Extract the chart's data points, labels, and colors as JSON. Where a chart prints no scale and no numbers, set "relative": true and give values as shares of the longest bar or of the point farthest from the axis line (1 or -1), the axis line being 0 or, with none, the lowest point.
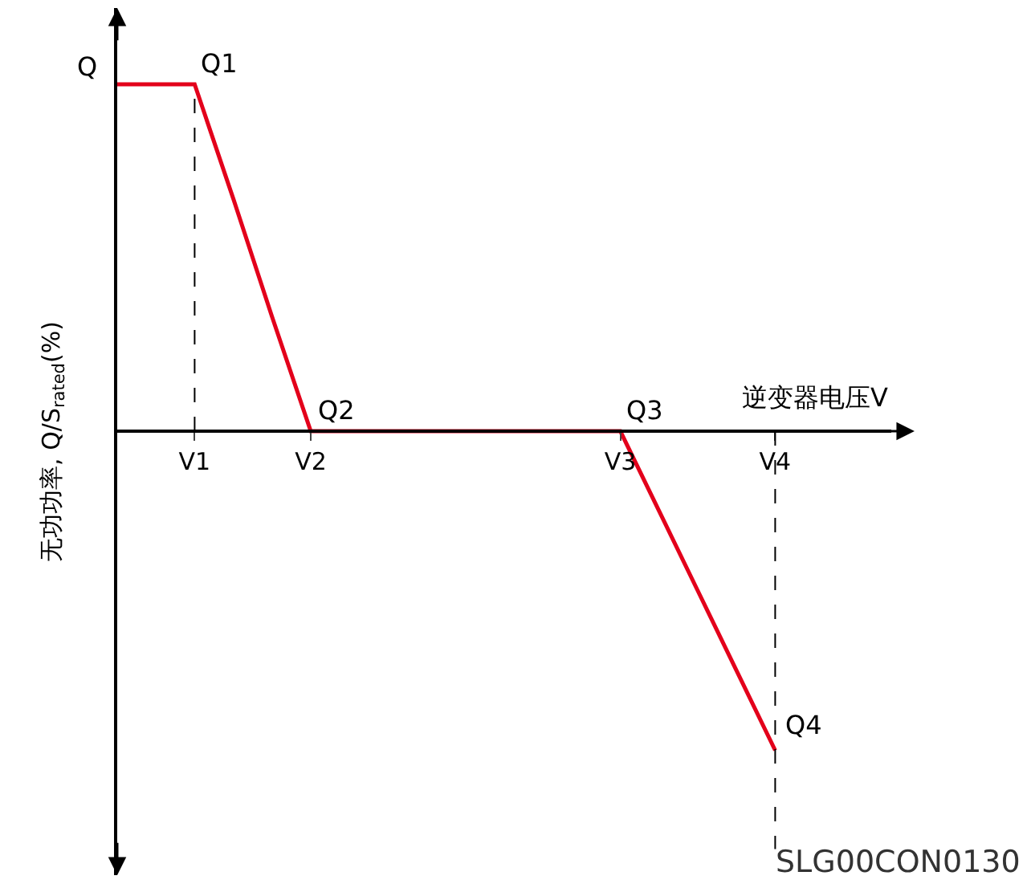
{
  "chart_data": {
    "type": "line",
    "relative": true,
    "xlabel": "逆变器电压V",
    "ylabel": "无功功率, Q/S$_{rated}$(%)",
    "categories": [
      null,
      null,
      "V1",
      null,
      null,
      "V2",
      null,
      null,
      null,
      null,
      null,
      null,
      null,
      "V3",
      null,
      null,
      null,
      "V4",
      null,
      null,
      null
    ],
    "series": [
      {
        "color": "#e3001b",
        "values": [
          1,
          1,
          1,
          0.67,
          0.33,
          0,
          0,
          0,
          0,
          0,
          0,
          0,
          0,
          0,
          -0.23,
          -0.46,
          -0.69,
          -0.92,
          null,
          null,
          null
        ]
      }
    ],
    "ref_lines": [
      {
        "axis": "x",
        "value": "V1",
        "line_style": "dashed",
        "color": "#000000"
      },
      {
        "axis": "x",
        "value": "V4",
        "line_style": "dashed",
        "color": "#000000"
      }
    ],
    "annotations": [
      "Q",
      {
        "text": "Q1",
        "x": "V1",
        "y": 1
      },
      {
        "text": "Q2",
        "x": "V2",
        "y": 0
      },
      {
        "text": "Q3",
        "x": "V3",
        "y": 0
      },
      {
        "text": "Q4",
        "x": "V4",
        "y": -0.92
      },
      "SLG00CON0130"
    ],
    "marker": "none",
    "line_style": "solid"
  }
}
